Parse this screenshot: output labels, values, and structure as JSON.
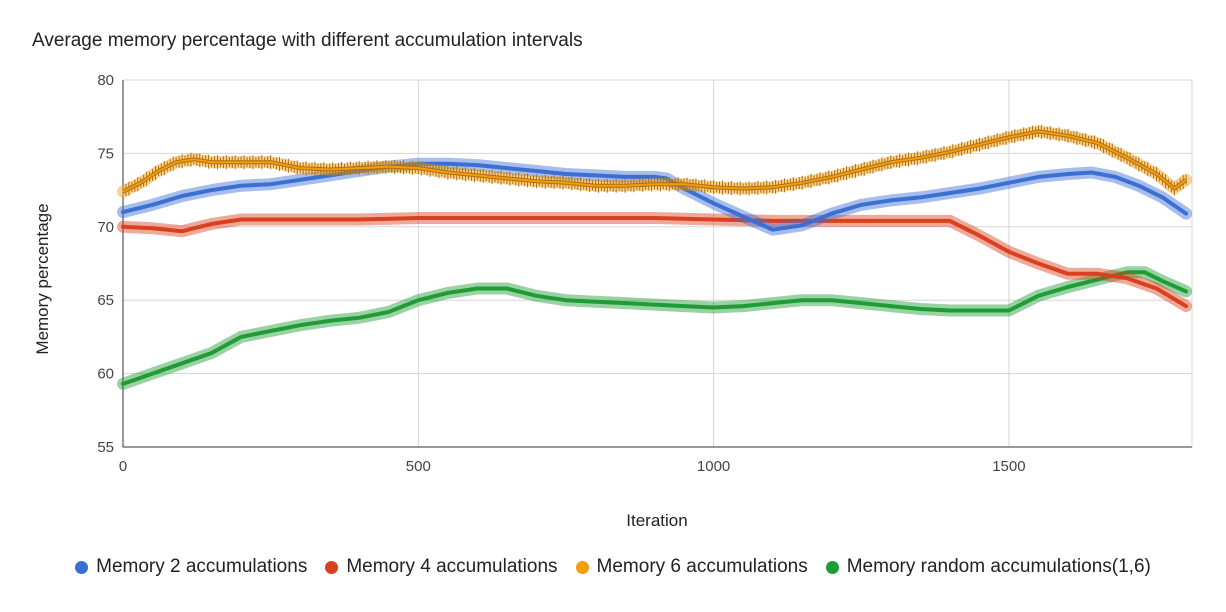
{
  "chart_data": {
    "type": "line",
    "title": "Average memory percentage with different accumulation intervals",
    "xlabel": "Iteration",
    "ylabel": "Memory percentage",
    "xlim": [
      0,
      1810
    ],
    "ylim": [
      55,
      80
    ],
    "x_ticks": [
      "0",
      "500",
      "1000",
      "1500"
    ],
    "x_tick_values": [
      0,
      500,
      1000,
      1500
    ],
    "y_ticks": [
      "55",
      "60",
      "65",
      "70",
      "75",
      "80"
    ],
    "y_tick_values": [
      55,
      60,
      65,
      70,
      75,
      80
    ],
    "grid": true,
    "legend_position": "bottom",
    "series": [
      {
        "name": "Memory 2 accumulations",
        "color": "#3b6fd4",
        "error_bars": false,
        "points": [
          [
            0,
            71.0
          ],
          [
            50,
            71.5
          ],
          [
            100,
            72.1
          ],
          [
            150,
            72.5
          ],
          [
            200,
            72.8
          ],
          [
            250,
            72.9
          ],
          [
            300,
            73.2
          ],
          [
            350,
            73.5
          ],
          [
            400,
            73.8
          ],
          [
            450,
            74.1
          ],
          [
            500,
            74.3
          ],
          [
            550,
            74.3
          ],
          [
            600,
            74.2
          ],
          [
            650,
            74.0
          ],
          [
            700,
            73.8
          ],
          [
            750,
            73.6
          ],
          [
            800,
            73.5
          ],
          [
            850,
            73.4
          ],
          [
            900,
            73.4
          ],
          [
            920,
            73.3
          ],
          [
            950,
            72.6
          ],
          [
            1000,
            71.6
          ],
          [
            1050,
            70.7
          ],
          [
            1100,
            69.8
          ],
          [
            1150,
            70.1
          ],
          [
            1200,
            70.9
          ],
          [
            1250,
            71.5
          ],
          [
            1300,
            71.8
          ],
          [
            1350,
            72.0
          ],
          [
            1400,
            72.3
          ],
          [
            1450,
            72.6
          ],
          [
            1500,
            73.0
          ],
          [
            1550,
            73.4
          ],
          [
            1600,
            73.6
          ],
          [
            1640,
            73.7
          ],
          [
            1680,
            73.4
          ],
          [
            1720,
            72.8
          ],
          [
            1760,
            72.0
          ],
          [
            1800,
            70.9
          ]
        ]
      },
      {
        "name": "Memory 4 accumulations",
        "color": "#d9411e",
        "error_bars": false,
        "points": [
          [
            0,
            70.0
          ],
          [
            50,
            69.9
          ],
          [
            100,
            69.7
          ],
          [
            150,
            70.2
          ],
          [
            200,
            70.5
          ],
          [
            300,
            70.5
          ],
          [
            400,
            70.5
          ],
          [
            500,
            70.6
          ],
          [
            600,
            70.6
          ],
          [
            700,
            70.6
          ],
          [
            800,
            70.6
          ],
          [
            900,
            70.6
          ],
          [
            1000,
            70.5
          ],
          [
            1100,
            70.4
          ],
          [
            1200,
            70.4
          ],
          [
            1300,
            70.4
          ],
          [
            1400,
            70.4
          ],
          [
            1450,
            69.4
          ],
          [
            1500,
            68.3
          ],
          [
            1550,
            67.5
          ],
          [
            1600,
            66.8
          ],
          [
            1650,
            66.8
          ],
          [
            1700,
            66.5
          ],
          [
            1750,
            65.8
          ],
          [
            1800,
            64.6
          ]
        ]
      },
      {
        "name": "Memory 6 accumulations",
        "color": "#f59b0c",
        "error_bars": true,
        "points": [
          [
            0,
            72.4
          ],
          [
            30,
            73.0
          ],
          [
            60,
            73.8
          ],
          [
            90,
            74.4
          ],
          [
            120,
            74.6
          ],
          [
            150,
            74.4
          ],
          [
            200,
            74.4
          ],
          [
            250,
            74.4
          ],
          [
            300,
            74.0
          ],
          [
            350,
            73.9
          ],
          [
            400,
            74.0
          ],
          [
            450,
            74.1
          ],
          [
            500,
            74.0
          ],
          [
            550,
            73.7
          ],
          [
            600,
            73.5
          ],
          [
            650,
            73.3
          ],
          [
            700,
            73.1
          ],
          [
            750,
            73.0
          ],
          [
            800,
            72.8
          ],
          [
            850,
            72.8
          ],
          [
            900,
            72.9
          ],
          [
            950,
            72.9
          ],
          [
            1000,
            72.7
          ],
          [
            1050,
            72.6
          ],
          [
            1100,
            72.7
          ],
          [
            1150,
            73.0
          ],
          [
            1200,
            73.4
          ],
          [
            1250,
            73.9
          ],
          [
            1300,
            74.4
          ],
          [
            1350,
            74.7
          ],
          [
            1400,
            75.1
          ],
          [
            1450,
            75.6
          ],
          [
            1500,
            76.1
          ],
          [
            1550,
            76.5
          ],
          [
            1600,
            76.2
          ],
          [
            1650,
            75.7
          ],
          [
            1700,
            74.7
          ],
          [
            1750,
            73.6
          ],
          [
            1780,
            72.6
          ],
          [
            1800,
            73.2
          ]
        ]
      },
      {
        "name": "Memory random accumulations(1,6)",
        "color": "#1f9c36",
        "error_bars": false,
        "points": [
          [
            0,
            59.3
          ],
          [
            50,
            60.0
          ],
          [
            100,
            60.7
          ],
          [
            150,
            61.4
          ],
          [
            200,
            62.5
          ],
          [
            250,
            62.9
          ],
          [
            300,
            63.3
          ],
          [
            350,
            63.6
          ],
          [
            400,
            63.8
          ],
          [
            450,
            64.2
          ],
          [
            500,
            65.0
          ],
          [
            550,
            65.5
          ],
          [
            600,
            65.8
          ],
          [
            650,
            65.8
          ],
          [
            700,
            65.3
          ],
          [
            750,
            65.0
          ],
          [
            800,
            64.9
          ],
          [
            850,
            64.8
          ],
          [
            900,
            64.7
          ],
          [
            950,
            64.6
          ],
          [
            1000,
            64.5
          ],
          [
            1050,
            64.6
          ],
          [
            1100,
            64.8
          ],
          [
            1150,
            65.0
          ],
          [
            1200,
            65.0
          ],
          [
            1250,
            64.8
          ],
          [
            1300,
            64.6
          ],
          [
            1350,
            64.4
          ],
          [
            1400,
            64.3
          ],
          [
            1450,
            64.3
          ],
          [
            1500,
            64.3
          ],
          [
            1550,
            65.3
          ],
          [
            1600,
            65.9
          ],
          [
            1650,
            66.4
          ],
          [
            1700,
            66.9
          ],
          [
            1730,
            66.9
          ],
          [
            1760,
            66.3
          ],
          [
            1800,
            65.6
          ]
        ]
      }
    ]
  }
}
